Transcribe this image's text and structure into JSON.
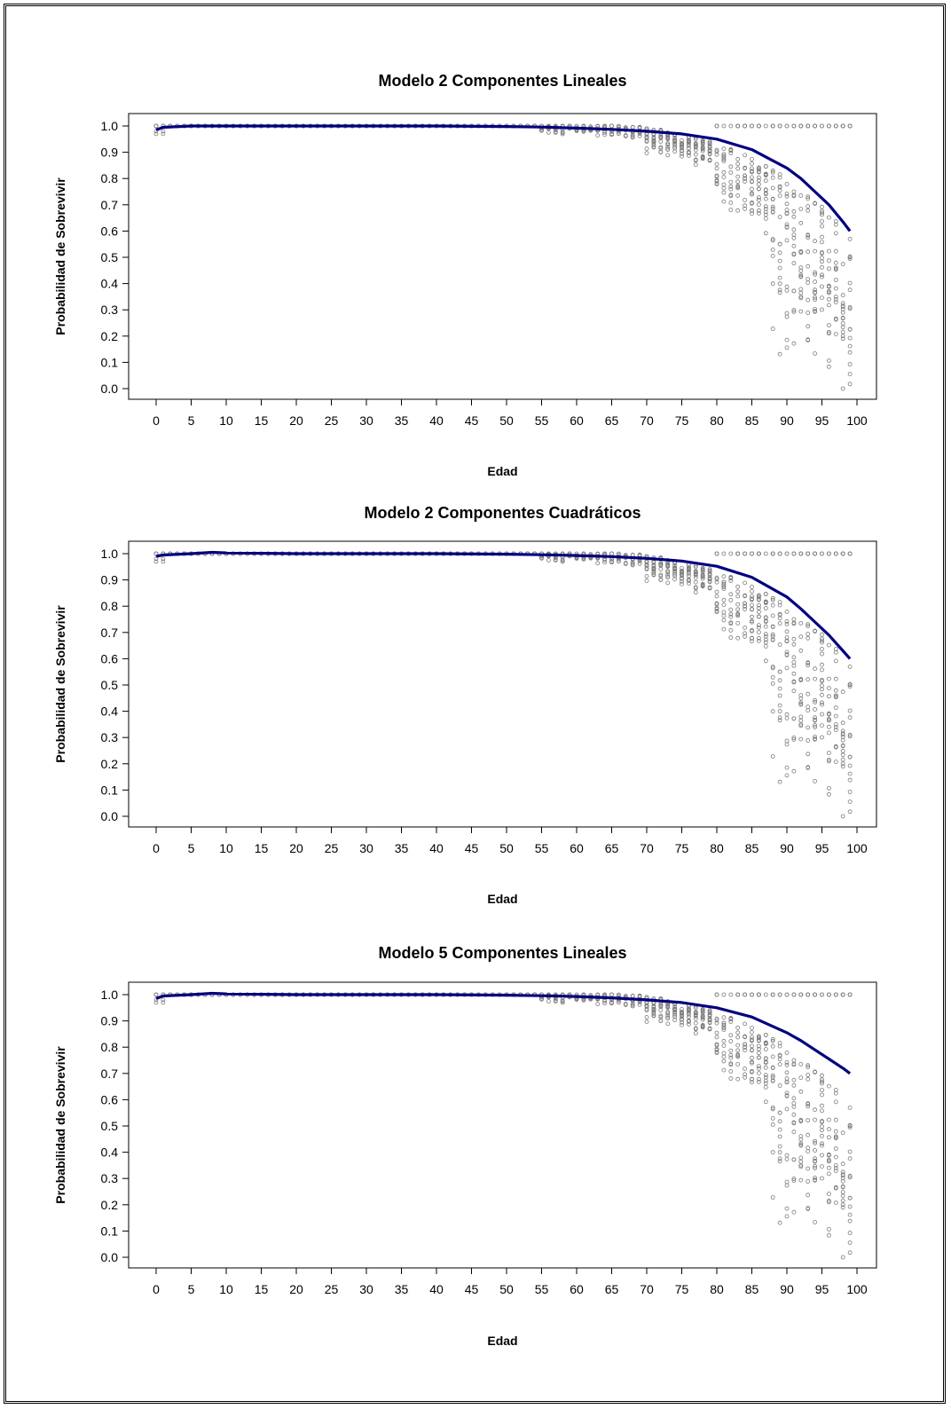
{
  "colors": {
    "points": "#7a7a7a",
    "curve": "#00007f",
    "frame": "#000000"
  },
  "chart_data": [
    {
      "type": "scatter",
      "title": "Modelo 2 Componentes Lineales",
      "xlabel": "Edad",
      "ylabel": "Probabilidad de Sobrevivir",
      "xlim": [
        0,
        100
      ],
      "ylim": [
        0,
        1
      ],
      "xticks": [
        "0",
        "5",
        "10",
        "15",
        "20",
        "25",
        "30",
        "35",
        "40",
        "45",
        "50",
        "55",
        "60",
        "65",
        "70",
        "75",
        "80",
        "85",
        "90",
        "95",
        "100"
      ],
      "yticks": [
        "0.0",
        "0.1",
        "0.2",
        "0.3",
        "0.4",
        "0.5",
        "0.6",
        "0.7",
        "0.8",
        "0.9",
        "1.0"
      ],
      "fitted_curve": {
        "x": [
          0,
          1,
          5,
          10,
          20,
          30,
          40,
          50,
          55,
          60,
          65,
          70,
          75,
          80,
          85,
          90,
          92,
          94,
          96,
          98,
          99
        ],
        "y": [
          0.985,
          0.995,
          1.0,
          1.0,
          1.0,
          1.0,
          1.0,
          0.998,
          0.996,
          0.992,
          0.987,
          0.98,
          0.97,
          0.95,
          0.91,
          0.84,
          0.8,
          0.75,
          0.7,
          0.635,
          0.6
        ]
      }
    },
    {
      "type": "scatter",
      "title": "Modelo 2 Componentes Cuadráticos",
      "xlabel": "Edad",
      "ylabel": "Probabilidad de Sobrevivir",
      "xlim": [
        0,
        100
      ],
      "ylim": [
        0,
        1
      ],
      "xticks": [
        "0",
        "5",
        "10",
        "15",
        "20",
        "25",
        "30",
        "35",
        "40",
        "45",
        "50",
        "55",
        "60",
        "65",
        "70",
        "75",
        "80",
        "85",
        "90",
        "95",
        "100"
      ],
      "yticks": [
        "0.0",
        "0.1",
        "0.2",
        "0.3",
        "0.4",
        "0.5",
        "0.6",
        "0.7",
        "0.8",
        "0.9",
        "1.0"
      ],
      "fitted_curve": {
        "x": [
          0,
          1,
          5,
          8,
          10,
          20,
          30,
          40,
          50,
          55,
          60,
          65,
          70,
          75,
          80,
          85,
          90,
          92,
          94,
          96,
          98,
          99
        ],
        "y": [
          0.99,
          0.995,
          1.0,
          1.005,
          1.003,
          1.0,
          1.0,
          1.0,
          0.998,
          0.996,
          0.993,
          0.989,
          0.982,
          0.972,
          0.952,
          0.91,
          0.835,
          0.79,
          0.74,
          0.69,
          0.63,
          0.6
        ]
      }
    },
    {
      "type": "scatter",
      "title": "Modelo 5 Componentes Lineales",
      "xlabel": "Edad",
      "ylabel": "Probabilidad de Sobrevivir",
      "xlim": [
        0,
        100
      ],
      "ylim": [
        0,
        1
      ],
      "xticks": [
        "0",
        "5",
        "10",
        "15",
        "20",
        "25",
        "30",
        "35",
        "40",
        "45",
        "50",
        "55",
        "60",
        "65",
        "70",
        "75",
        "80",
        "85",
        "90",
        "95",
        "100"
      ],
      "yticks": [
        "0.0",
        "0.1",
        "0.2",
        "0.3",
        "0.4",
        "0.5",
        "0.6",
        "0.7",
        "0.8",
        "0.9",
        "1.0"
      ],
      "fitted_curve": {
        "x": [
          0,
          1,
          5,
          8,
          10,
          20,
          30,
          40,
          50,
          55,
          60,
          65,
          70,
          75,
          80,
          85,
          90,
          92,
          94,
          96,
          98,
          99
        ],
        "y": [
          0.985,
          0.995,
          1.0,
          1.005,
          1.003,
          1.0,
          1.0,
          1.0,
          0.998,
          0.996,
          0.993,
          0.988,
          0.98,
          0.97,
          0.95,
          0.915,
          0.855,
          0.825,
          0.79,
          0.755,
          0.72,
          0.7
        ]
      }
    }
  ]
}
